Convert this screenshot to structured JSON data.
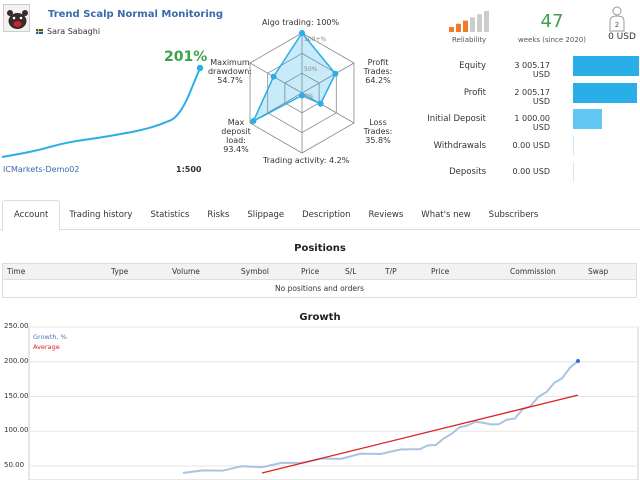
{
  "signal": {
    "title": "Trend Scalp Normal Monitoring",
    "author": "Sara Sabaghi",
    "growth": "201%",
    "broker": "ICMarkets-Demo02",
    "leverage": "1:500"
  },
  "radar": {
    "labels": {
      "algo": "Algo trading: 100%",
      "profit": "Profit Trades: 64.2%",
      "loss": "Loss Trades: 35.8%",
      "activity": "Trading activity: 4.2%",
      "load": "Max deposit load: 93.4%",
      "drawdown": "Maximum drawdown: 54.7%"
    },
    "scale": [
      "100+%",
      "50%",
      "0%"
    ],
    "values": {
      "algo": 1.0,
      "profit": 0.642,
      "loss": 0.358,
      "activity": 0.042,
      "load": 0.934,
      "drawdown": 0.547
    }
  },
  "reliability": {
    "label": "Reliability",
    "level": 3,
    "total": 6
  },
  "weeks": {
    "value": "47",
    "label": "weeks (since 2020)"
  },
  "subscribers": {
    "count_badge": "2",
    "value": "0 USD"
  },
  "stats": [
    {
      "label": "Equity",
      "value": "3 005.17 USD",
      "fraction": 1.0
    },
    {
      "label": "Profit",
      "value": "2 005.17 USD",
      "fraction": 0.972
    },
    {
      "label": "Initial Deposit",
      "value": "1 000.00 USD",
      "fraction": 0.44
    },
    {
      "label": "Withdrawals",
      "value": "0.00 USD",
      "fraction": 0
    },
    {
      "label": "Deposits",
      "value": "0.00 USD",
      "fraction": 0
    }
  ],
  "tabs": [
    "Account",
    "Trading history",
    "Statistics",
    "Risks",
    "Slippage",
    "Description",
    "Reviews",
    "What's new",
    "Subscribers"
  ],
  "positions": {
    "title": "Positions",
    "columns": [
      "Time",
      "Type",
      "Volume",
      "Symbol",
      "Price",
      "S/L",
      "T/P",
      "Price",
      "Commission",
      "Swap"
    ],
    "empty_text": "No positions and orders"
  },
  "growth_chart": {
    "title": "Growth",
    "legend_growth": "Growth, %",
    "legend_average": "Average",
    "y_ticks": [
      "250.00",
      "200.00",
      "150.00",
      "100.00",
      "50.00"
    ]
  },
  "chart_data": [
    {
      "type": "line",
      "title": "Growth",
      "series": [
        {
          "name": "Growth, %",
          "x": [
            0,
            10,
            20,
            30,
            40,
            50,
            60,
            70,
            80,
            90,
            100
          ],
          "values": [
            0,
            8,
            17,
            30,
            38,
            44,
            52,
            60,
            73,
            92,
            201
          ]
        }
      ]
    },
    {
      "type": "line",
      "title": "Growth",
      "ylabel": "",
      "ylim": [
        40,
        255
      ],
      "y_ticks": [
        250,
        200,
        150,
        100,
        50
      ],
      "series": [
        {
          "name": "Growth, %",
          "x": [
            0,
            5,
            10,
            15,
            20,
            25,
            30,
            35,
            40,
            45,
            50,
            55,
            60,
            62,
            64,
            66,
            68,
            70,
            72,
            74,
            76,
            78,
            80,
            82,
            84,
            86,
            88,
            90,
            92,
            94,
            96,
            98,
            100
          ],
          "values": [
            40,
            42,
            45,
            48,
            50,
            53,
            56,
            59,
            62,
            66,
            69,
            72,
            76,
            78,
            82,
            88,
            98,
            104,
            110,
            112,
            114,
            108,
            112,
            115,
            120,
            130,
            138,
            148,
            158,
            168,
            178,
            190,
            201
          ]
        },
        {
          "name": "Average",
          "x": [
            20,
            100
          ],
          "values": [
            40,
            152
          ]
        }
      ]
    }
  ]
}
